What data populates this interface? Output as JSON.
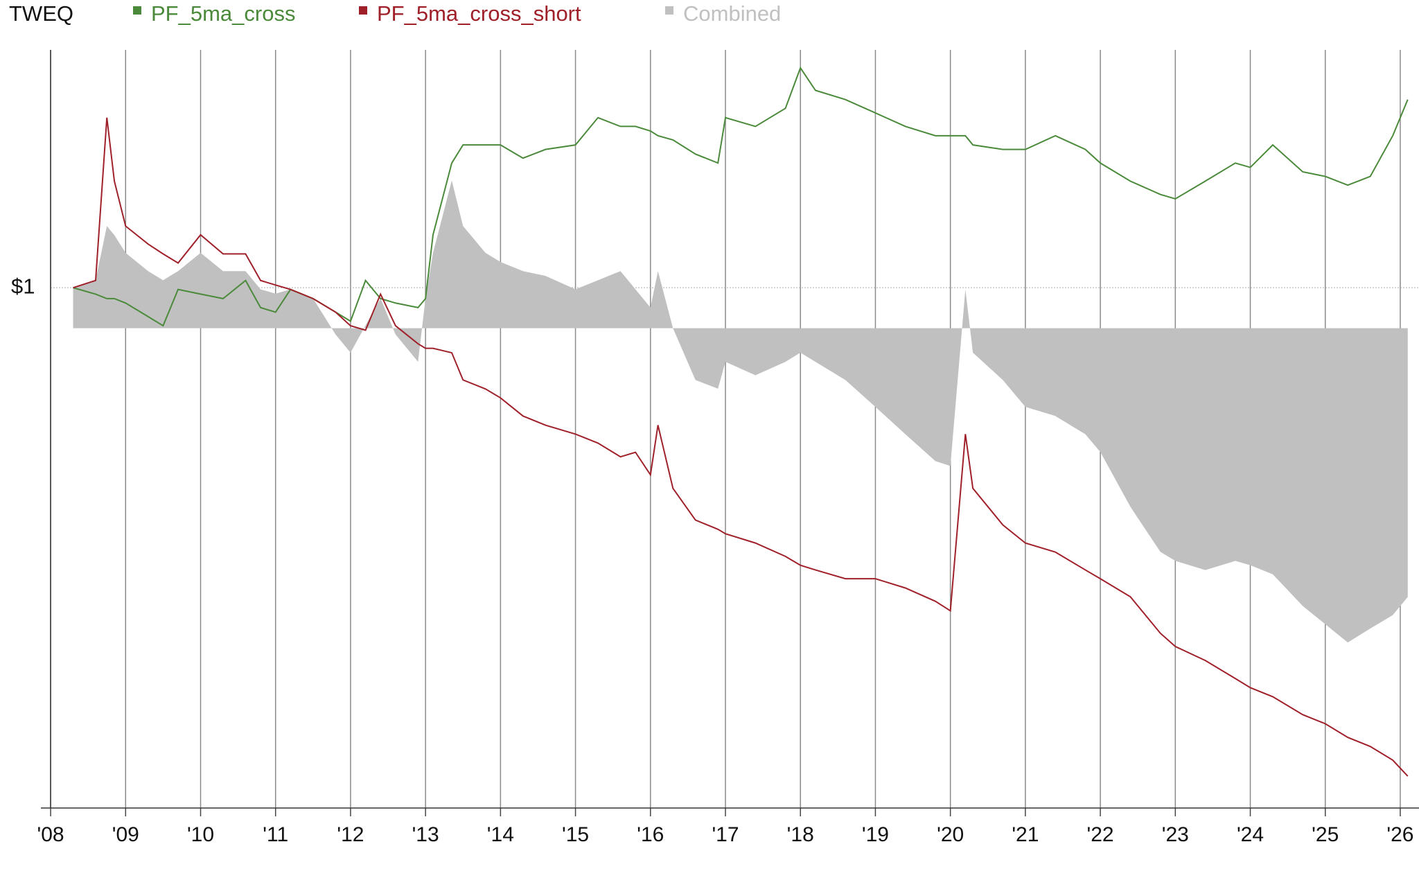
{
  "chart_data": {
    "type": "line",
    "title": "TWEQ",
    "log_y": true,
    "grid": true,
    "x": [
      2008.3,
      2008.6,
      2008.75,
      2008.85,
      2009.0,
      2009.3,
      2009.5,
      2009.7,
      2010.0,
      2010.3,
      2010.6,
      2010.8,
      2011.0,
      2011.2,
      2011.5,
      2011.8,
      2012.0,
      2012.2,
      2012.4,
      2012.6,
      2012.9,
      2013.0,
      2013.1,
      2013.35,
      2013.5,
      2013.8,
      2014.0,
      2014.3,
      2014.6,
      2015.0,
      2015.3,
      2015.6,
      2015.8,
      2016.0,
      2016.1,
      2016.3,
      2016.6,
      2016.9,
      2017.0,
      2017.4,
      2017.8,
      2018.0,
      2018.2,
      2018.6,
      2019.0,
      2019.4,
      2019.8,
      2020.0,
      2020.2,
      2020.3,
      2020.7,
      2021.0,
      2021.4,
      2021.8,
      2022.0,
      2022.4,
      2022.8,
      2023.0,
      2023.4,
      2023.8,
      2024.0,
      2024.3,
      2024.7,
      2025.0,
      2025.3,
      2025.6,
      2025.9,
      2026.1
    ],
    "series": [
      {
        "name": "PF_5ma_cross",
        "color": "#4a8a3a",
        "values": [
          1,
          0.96,
          0.933,
          0.933,
          0.907,
          0.832,
          0.785,
          0.989,
          0.96,
          0.933,
          1.047,
          0.881,
          0.856,
          0.989,
          0.933,
          0.856,
          0.808,
          1.047,
          0.933,
          0.907,
          0.881,
          0.933,
          1.4,
          2.21,
          2.48,
          2.48,
          2.48,
          2.28,
          2.41,
          2.48,
          2.95,
          2.79,
          2.79,
          2.71,
          2.63,
          2.56,
          2.34,
          2.21,
          2.95,
          2.79,
          3.13,
          4.05,
          3.51,
          3.31,
          3.04,
          2.79,
          2.63,
          2.63,
          2.63,
          2.48,
          2.41,
          2.41,
          2.63,
          2.41,
          2.21,
          1.97,
          1.81,
          1.76,
          1.97,
          2.21,
          2.15,
          2.48,
          2.09,
          2.03,
          1.92,
          2.03,
          2.63,
          3.31
        ]
      },
      {
        "name": "PF_5ma_cross_short",
        "color": "#a0202a",
        "values": [
          1,
          1.047,
          2.95,
          1.97,
          1.48,
          1.32,
          1.24,
          1.17,
          1.4,
          1.24,
          1.24,
          1.047,
          1.017,
          0.989,
          0.933,
          0.856,
          0.785,
          0.763,
          0.96,
          0.785,
          0.7,
          0.68,
          0.68,
          0.661,
          0.556,
          0.525,
          0.496,
          0.442,
          0.417,
          0.394,
          0.372,
          0.341,
          0.351,
          0.304,
          0.417,
          0.279,
          0.228,
          0.215,
          0.209,
          0.197,
          0.181,
          0.171,
          0.166,
          0.157,
          0.157,
          0.148,
          0.136,
          0.128,
          0.394,
          0.279,
          0.221,
          0.197,
          0.186,
          0.166,
          0.157,
          0.14,
          0.111,
          0.102,
          0.0933,
          0.0832,
          0.0785,
          0.0741,
          0.0661,
          0.0624,
          0.0572,
          0.054,
          0.0495,
          0.0447
        ]
      },
      {
        "name": "Combined",
        "color": "#c0c0c0",
        "axis": "y2",
        "values": [
          0.085,
          0.1,
          0.213,
          0.194,
          0.157,
          0.119,
          0.1,
          0.119,
          0.157,
          0.119,
          0.119,
          0.081,
          0.072,
          0.081,
          0.062,
          -0.013,
          -0.051,
          0.006,
          0.062,
          -0.013,
          -0.07,
          0.062,
          0.157,
          0.308,
          0.213,
          0.157,
          0.138,
          0.119,
          0.109,
          0.081,
          0.1,
          0.119,
          0.081,
          0.043,
          0.119,
          0,
          -0.108,
          -0.126,
          -0.07,
          -0.098,
          -0.07,
          -0.051,
          -0.07,
          -0.108,
          -0.164,
          -0.221,
          -0.277,
          -0.287,
          0.081,
          -0.051,
          -0.108,
          -0.164,
          -0.183,
          -0.221,
          -0.258,
          -0.372,
          -0.466,
          -0.485,
          -0.504,
          -0.485,
          -0.494,
          -0.513,
          -0.579,
          -0.617,
          -0.655,
          -0.626,
          -0.598,
          -0.56
        ]
      }
    ],
    "xlim": [
      2007.87,
      2026.25
    ],
    "xticks": [
      {
        "value": 2008,
        "label": "'08"
      },
      {
        "value": 2009,
        "label": "'09"
      },
      {
        "value": 2010,
        "label": "'10"
      },
      {
        "value": 2011,
        "label": "'11"
      },
      {
        "value": 2012,
        "label": "'12"
      },
      {
        "value": 2013,
        "label": "'13"
      },
      {
        "value": 2014,
        "label": "'14"
      },
      {
        "value": 2015,
        "label": "'15"
      },
      {
        "value": 2016,
        "label": "'16"
      },
      {
        "value": 2017,
        "label": "'17"
      },
      {
        "value": 2018,
        "label": "'18"
      },
      {
        "value": 2019,
        "label": "'19"
      },
      {
        "value": 2020,
        "label": "'20"
      },
      {
        "value": 2021,
        "label": "'21"
      },
      {
        "value": 2022,
        "label": "'22"
      },
      {
        "value": 2023,
        "label": "'23"
      },
      {
        "value": 2024,
        "label": "'24"
      },
      {
        "value": 2025,
        "label": "'25"
      },
      {
        "value": 2026,
        "label": "'26"
      }
    ],
    "ylim": [
      0.0365,
      4.54
    ],
    "yticks": [
      {
        "value": 1,
        "label": "$1"
      }
    ],
    "y2lim": [
      -1,
      0.58
    ]
  }
}
